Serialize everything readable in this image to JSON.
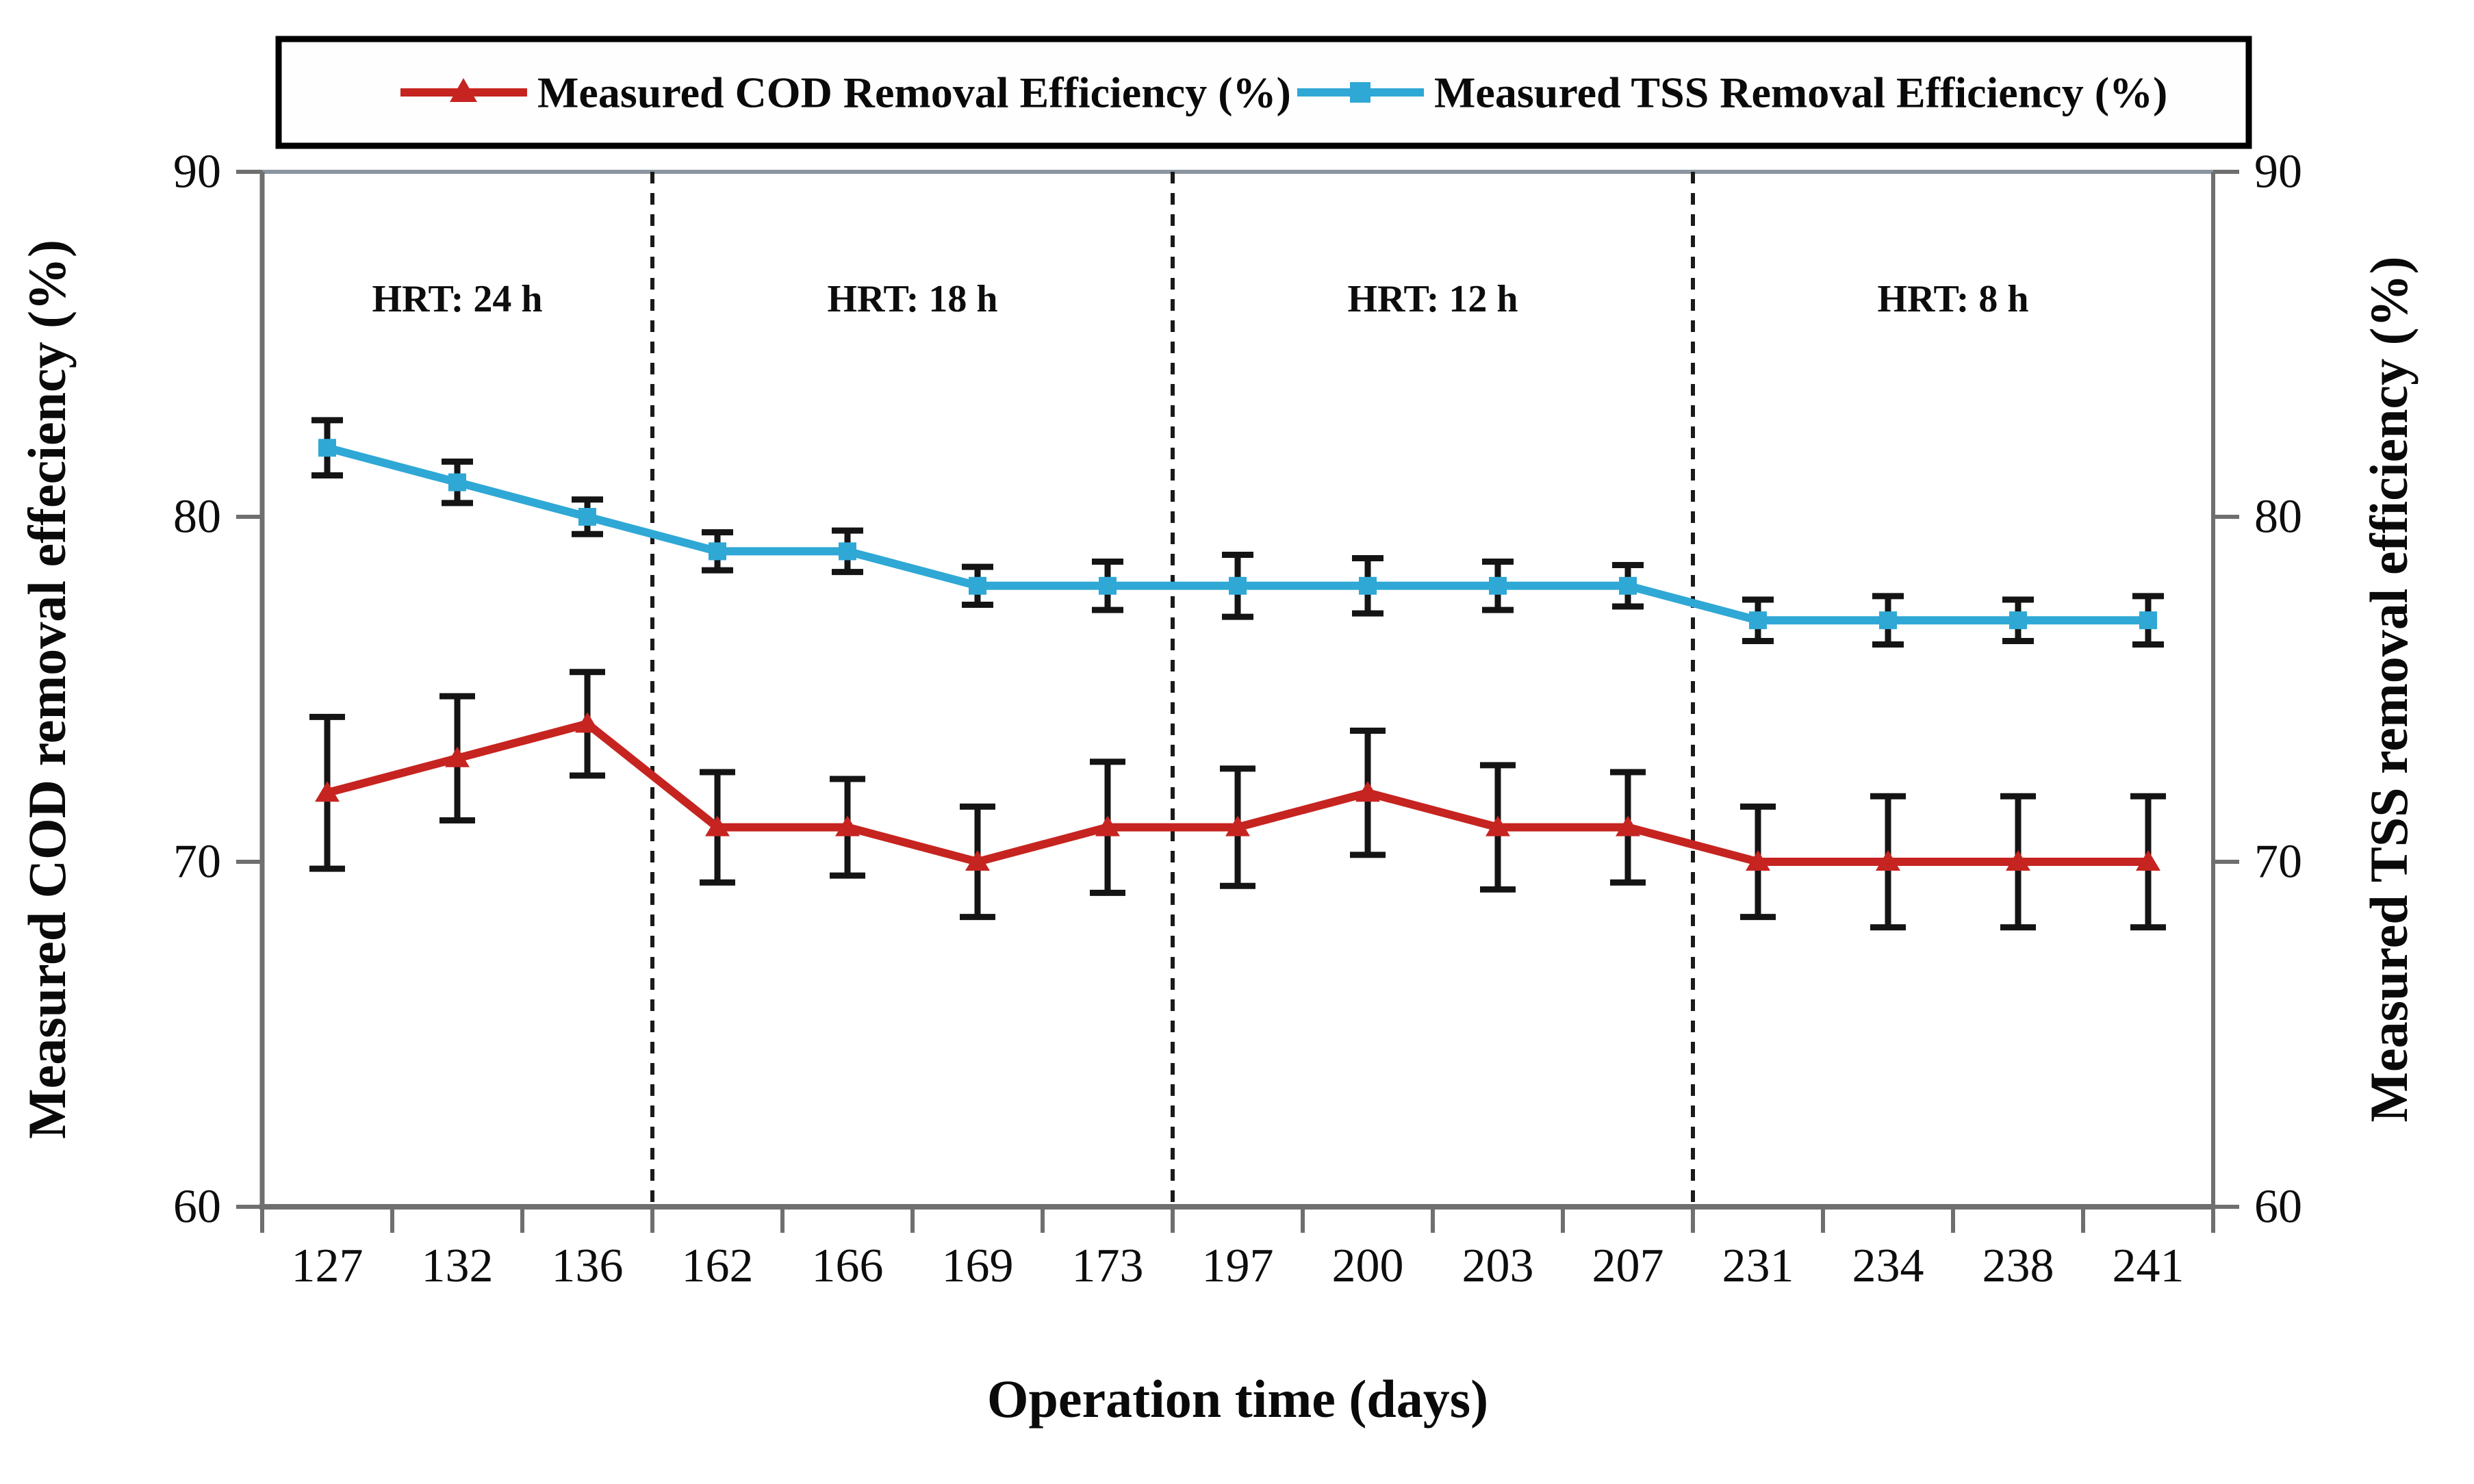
{
  "figure": {
    "background_color": "#ffffff",
    "axis_color": "#6f6f6f",
    "error_bar_color": "#141414",
    "divider_color": "#1a1a1a",
    "legend": [
      {
        "label": "Measured COD Removal Efficiency (%)",
        "marker": "triangle",
        "color": "#c62420"
      },
      {
        "label": "Measured TSS Removal Efficiency (%)",
        "marker": "square",
        "color": "#2fa8d5"
      }
    ],
    "hrt_labels": [
      "HRT: 24 h",
      "HRT: 18 h",
      "HRT: 12 h",
      "HRT: 8 h"
    ]
  },
  "chart_data": {
    "type": "line",
    "title": "",
    "xlabel": "Operation time (days)",
    "ylabel_left": "Measured COD removal effeciency (%)",
    "ylabel_right": "Measured TSS removal efficiency (%)",
    "categories": [
      127,
      132,
      136,
      162,
      166,
      169,
      173,
      197,
      200,
      203,
      207,
      231,
      234,
      238,
      241
    ],
    "series": [
      {
        "name": "Measured COD Removal Efficiency (%)",
        "color": "#c62420",
        "marker": "triangle",
        "values": [
          72,
          73,
          74,
          71,
          71,
          70,
          71,
          71,
          72,
          71,
          71,
          70,
          70,
          70,
          70
        ],
        "errors": [
          2.2,
          1.8,
          1.5,
          1.6,
          1.4,
          1.6,
          1.9,
          1.7,
          1.8,
          1.8,
          1.6,
          1.6,
          1.9,
          1.9,
          1.9
        ]
      },
      {
        "name": "Measured TSS Removal Efficiency (%)",
        "color": "#2fa8d5",
        "marker": "square",
        "values": [
          82,
          81,
          80,
          79,
          79,
          78,
          78,
          78,
          78,
          78,
          78,
          77,
          77,
          77,
          77
        ],
        "errors": [
          0.8,
          0.6,
          0.5,
          0.55,
          0.6,
          0.55,
          0.7,
          0.9,
          0.8,
          0.7,
          0.6,
          0.6,
          0.7,
          0.6,
          0.7
        ]
      }
    ],
    "ylim": [
      60,
      90
    ],
    "yticks": [
      60,
      70,
      80,
      90
    ],
    "grid": false,
    "legend_position": "top",
    "section_dividers_after_index": [
      2,
      6,
      10
    ],
    "sections": [
      {
        "label": "HRT: 24 h",
        "hrt_hours": 24
      },
      {
        "label": "HRT: 18 h",
        "hrt_hours": 18
      },
      {
        "label": "HRT: 12 h",
        "hrt_hours": 12
      },
      {
        "label": "HRT: 8 h",
        "hrt_hours": 8
      }
    ]
  }
}
